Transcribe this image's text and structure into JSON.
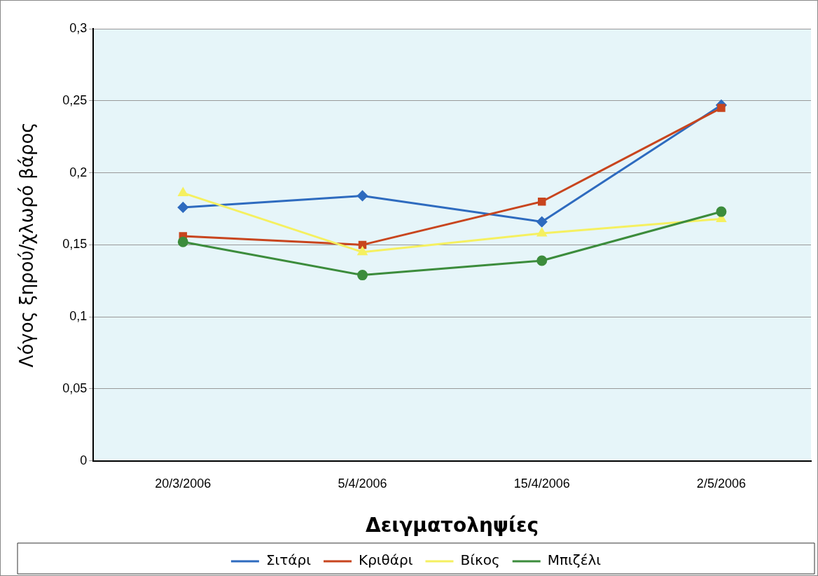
{
  "chart_data": {
    "type": "line",
    "xlabel": "Δειγματοληψίες",
    "ylabel": "Λόγος ξηρού/χλωρό βάρος",
    "categories": [
      "20/3/2006",
      "5/4/2006",
      "15/4/2006",
      "2/5/2006"
    ],
    "ylim": [
      0,
      0.3
    ],
    "yticks": [
      {
        "value": 0,
        "label": "0"
      },
      {
        "value": 0.05,
        "label": "0,05"
      },
      {
        "value": 0.1,
        "label": "0,1"
      },
      {
        "value": 0.15,
        "label": "0,15"
      },
      {
        "value": 0.2,
        "label": "0,2"
      },
      {
        "value": 0.25,
        "label": "0,25"
      },
      {
        "value": 0.3,
        "label": "0,3"
      }
    ],
    "grid": "y",
    "legend": "bottom",
    "series": [
      {
        "name": "Σιτάρι",
        "color": "#2e6bbf",
        "marker": "diamond",
        "values": [
          0.176,
          0.184,
          0.166,
          0.247
        ]
      },
      {
        "name": "Κριθάρι",
        "color": "#c8451e",
        "marker": "square",
        "values": [
          0.156,
          0.15,
          0.18,
          0.245
        ]
      },
      {
        "name": "Βίκος",
        "color": "#f5f060",
        "marker": "triangle",
        "values": [
          0.186,
          0.145,
          0.158,
          0.168
        ]
      },
      {
        "name": "Μπιζέλι",
        "color": "#3c8c3c",
        "marker": "circle",
        "values": [
          0.152,
          0.129,
          0.139,
          0.173
        ]
      }
    ]
  }
}
